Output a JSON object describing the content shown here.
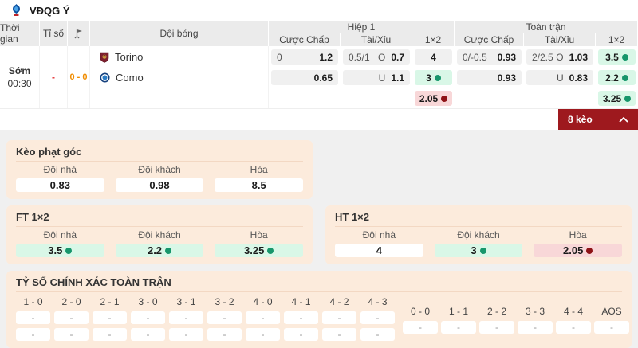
{
  "league": {
    "name": "VĐQG Ý"
  },
  "table": {
    "headers": {
      "time": "Thời gian",
      "score": "Tỉ số",
      "team": "Đội bóng",
      "half1": "Hiệp 1",
      "full": "Toàn trận",
      "handicap": "Cược Chấp",
      "over_under": "Tài/Xỉu",
      "one_x_two": "1×2"
    },
    "labels": {
      "over": "O",
      "under": "U"
    },
    "match": {
      "time_label": "Sớm",
      "time": "00:30",
      "score": "-",
      "corners": "0 - 0",
      "home": "Torino",
      "away": "Como"
    },
    "odds": {
      "h1": {
        "handicap": {
          "home_line": "0",
          "home": "1.2",
          "away_line": "",
          "away": "0.65"
        },
        "over_under": {
          "line": "0.5/1",
          "over": "0.7",
          "under": "1.1"
        },
        "one_x_two": {
          "home": "4",
          "away": "3",
          "draw": "2.05"
        }
      },
      "ft": {
        "handicap": {
          "home_line": "0/-0.5",
          "home": "0.93",
          "away_line": "",
          "away": "0.93"
        },
        "over_under": {
          "line": "2/2.5",
          "over": "1.03",
          "under": "0.83"
        },
        "one_x_two": {
          "home": "3.5",
          "away": "2.2",
          "draw": "3.25"
        }
      }
    },
    "more_bets": "8 kèo"
  },
  "sections": {
    "corner_kick": {
      "title": "Kèo phạt góc",
      "columns": [
        "Đội nhà",
        "Đội khách",
        "Hòa"
      ],
      "values": [
        "0.83",
        "0.98",
        "8.5"
      ]
    },
    "ft_1x2": {
      "title": "FT 1×2",
      "columns": [
        "Đội nhà",
        "Đội khách",
        "Hòa"
      ],
      "values": [
        "3.5",
        "2.2",
        "3.25"
      ]
    },
    "ht_1x2": {
      "title": "HT 1×2",
      "columns": [
        "Đội nhà",
        "Đội khách",
        "Hòa"
      ],
      "values": [
        "4",
        "3",
        "2.05"
      ]
    },
    "correct_score": {
      "title": "TỶ SỐ CHÍNH XÁC TOÀN TRẬN",
      "win_scores": [
        "1 - 0",
        "2 - 0",
        "2 - 1",
        "3 - 0",
        "3 - 1",
        "3 - 2",
        "4 - 0",
        "4 - 1",
        "4 - 2",
        "4 - 3"
      ],
      "draw_scores": [
        "0 - 0",
        "1 - 1",
        "2 - 2",
        "3 - 3",
        "4 - 4",
        "AOS"
      ],
      "placeholder": "-"
    }
  },
  "colors": {
    "banner_red": "#9e191e",
    "green_bg": "#d9f7e7",
    "green_dot": "#17966b",
    "pink_bg": "#f8d7d8",
    "red_dot": "#8e1216",
    "section_bg": "#fcebdc",
    "table_header_bg": "#ebebeb",
    "score_red": "#e5383b",
    "corner_orange": "#f08c00",
    "torino_maroon": "#7d1f2e",
    "como_blue": "#2a7bc4",
    "logo_blue": "#0d52a0"
  }
}
